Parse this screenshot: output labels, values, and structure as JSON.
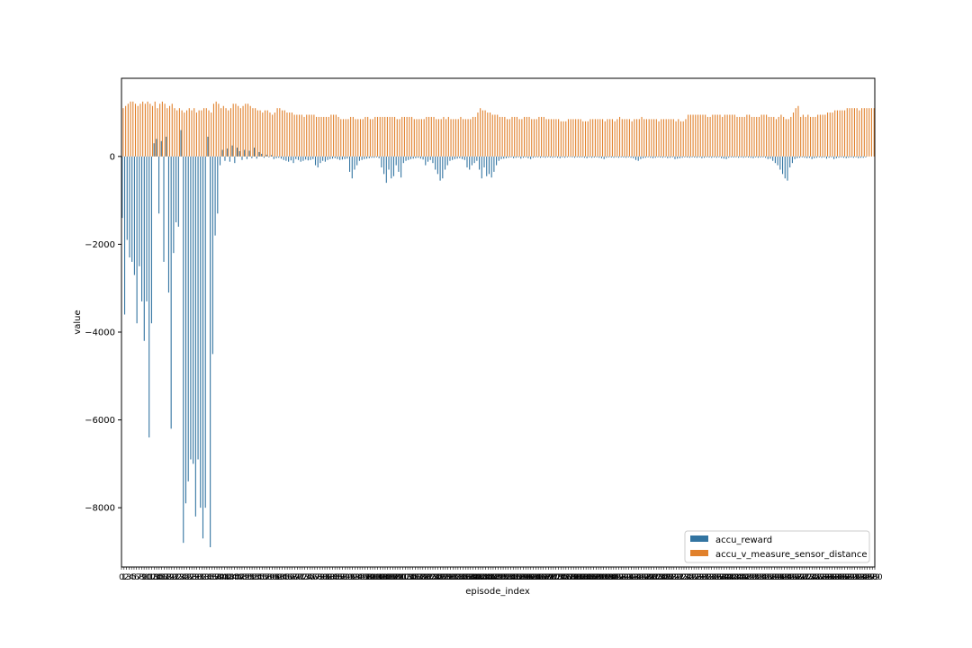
{
  "chart_data": {
    "type": "bar",
    "xlabel": "episode_index",
    "ylabel": "value",
    "ylim": [
      -9350,
      1780
    ],
    "y_ticks": [
      0,
      -2000,
      -4000,
      -6000,
      -8000
    ],
    "y_tick_labels": [
      "0",
      "−2000",
      "−4000",
      "−6000",
      "−8000"
    ],
    "x_range": [
      0,
      300
    ],
    "x_tick_labels_note": "0 … 300 (one tick per episode; labels overlap)",
    "first_tick_label": "0",
    "last_tick_label": "300",
    "legend_position": "lower-right",
    "series": [
      {
        "name": "accu_reward",
        "color": "#3274a1",
        "values": [
          -1400,
          -3600,
          -1900,
          -2300,
          -2400,
          -2700,
          -3800,
          -2500,
          -3300,
          -4200,
          -3300,
          -6400,
          -3800,
          300,
          400,
          -1300,
          350,
          -2400,
          450,
          -3100,
          -6200,
          -2200,
          -1500,
          -1600,
          600,
          -8800,
          -7900,
          -7400,
          -6900,
          -7000,
          -8200,
          -6900,
          -8000,
          -8700,
          -8000,
          450,
          -8900,
          -4500,
          -1800,
          -1300,
          -200,
          150,
          -100,
          180,
          -120,
          250,
          -150,
          200,
          120,
          -80,
          150,
          -60,
          130,
          -40,
          200,
          -50,
          100,
          60,
          -30,
          40,
          -20,
          30,
          -60,
          -40,
          -30,
          -50,
          -80,
          -100,
          -120,
          -90,
          -150,
          -60,
          -80,
          -120,
          -100,
          -70,
          -90,
          -80,
          -60,
          -200,
          -250,
          -150,
          -100,
          -120,
          -80,
          -60,
          -50,
          -40,
          -60,
          -80,
          -70,
          -60,
          -50,
          -350,
          -500,
          -300,
          -200,
          -100,
          -80,
          -60,
          -50,
          -40,
          -30,
          -30,
          -20,
          -40,
          -250,
          -400,
          -600,
          -300,
          -500,
          -450,
          -200,
          -350,
          -480,
          -150,
          -100,
          -80,
          -60,
          -50,
          -40,
          -30,
          -50,
          -70,
          -200,
          -120,
          -80,
          -150,
          -300,
          -400,
          -550,
          -500,
          -300,
          -200,
          -100,
          -80,
          -60,
          -50,
          -40,
          -60,
          -80,
          -250,
          -300,
          -200,
          -150,
          -100,
          -300,
          -500,
          -250,
          -450,
          -400,
          -480,
          -350,
          -200,
          -100,
          -60,
          -50,
          -40,
          -30,
          -20,
          -40,
          -30,
          -20,
          -50,
          -30,
          -20,
          -40,
          -60,
          -30,
          -20,
          -20,
          -30,
          -20,
          -30,
          -20,
          -25,
          -30,
          -20,
          -30,
          -40,
          -20,
          -30,
          -20,
          -15,
          -20,
          -30,
          -20,
          -25,
          -20,
          -30,
          -40,
          -20,
          -30,
          -25,
          -20,
          -30,
          -40,
          -60,
          -30,
          -20,
          -25,
          -30,
          -20,
          -30,
          -20,
          -25,
          -30,
          -20,
          -30,
          -40,
          -80,
          -100,
          -60,
          -40,
          -30,
          -20,
          -30,
          -40,
          -30,
          -20,
          -25,
          -30,
          -20,
          -40,
          -30,
          -20,
          -60,
          -50,
          -40,
          -30,
          -20,
          -25,
          -30,
          -20,
          -25,
          -30,
          -20,
          -40,
          -30,
          -20,
          -25,
          -30,
          -20,
          -30,
          -20,
          -40,
          -50,
          -60,
          -30,
          -20,
          -25,
          -20,
          -30,
          -20,
          -30,
          -20,
          -25,
          -30,
          -40,
          -20,
          -30,
          -25,
          -20,
          -30,
          -60,
          -50,
          -100,
          -150,
          -200,
          -300,
          -400,
          -500,
          -550,
          -250,
          -150,
          -60,
          -40,
          -30,
          -20,
          -30,
          -40,
          -30,
          -60,
          -40,
          -30,
          -20,
          -30,
          -20,
          -50,
          -30,
          -20,
          -60,
          -40,
          -30,
          -20,
          -30,
          -40,
          -30,
          -20,
          -30,
          -20,
          -40,
          -30,
          -30,
          -20
        ]
      },
      {
        "name": "accu_v_measure_sensor_distance",
        "color": "#e1812c",
        "values": [
          1100,
          1150,
          1200,
          1250,
          1250,
          1200,
          1150,
          1200,
          1250,
          1200,
          1250,
          1200,
          1150,
          1250,
          1100,
          1200,
          1250,
          1200,
          1100,
          1150,
          1200,
          1100,
          1050,
          1100,
          1050,
          1000,
          1050,
          1100,
          1050,
          1100,
          1000,
          1050,
          1050,
          1100,
          1100,
          1050,
          1000,
          1200,
          1250,
          1200,
          1100,
          1150,
          1100,
          1050,
          1100,
          1200,
          1200,
          1150,
          1100,
          1150,
          1200,
          1200,
          1150,
          1100,
          1100,
          1050,
          1050,
          1000,
          1050,
          1050,
          1000,
          950,
          1000,
          1100,
          1100,
          1050,
          1050,
          1000,
          1000,
          1000,
          950,
          950,
          950,
          950,
          900,
          950,
          950,
          950,
          950,
          900,
          900,
          900,
          900,
          900,
          900,
          950,
          950,
          950,
          900,
          850,
          850,
          850,
          850,
          900,
          900,
          850,
          850,
          850,
          850,
          900,
          900,
          850,
          850,
          900,
          900,
          900,
          900,
          900,
          900,
          900,
          900,
          900,
          850,
          850,
          900,
          900,
          900,
          900,
          900,
          850,
          850,
          850,
          850,
          850,
          900,
          900,
          900,
          900,
          850,
          850,
          850,
          900,
          850,
          900,
          850,
          850,
          850,
          850,
          900,
          850,
          850,
          850,
          850,
          900,
          900,
          1000,
          1100,
          1050,
          1050,
          1000,
          1000,
          950,
          950,
          950,
          900,
          900,
          900,
          850,
          850,
          900,
          900,
          900,
          850,
          850,
          900,
          900,
          900,
          850,
          850,
          850,
          900,
          900,
          900,
          850,
          850,
          850,
          850,
          850,
          850,
          800,
          800,
          800,
          850,
          850,
          850,
          850,
          850,
          850,
          800,
          800,
          800,
          850,
          850,
          850,
          850,
          850,
          850,
          800,
          850,
          850,
          850,
          800,
          850,
          900,
          850,
          850,
          850,
          850,
          800,
          850,
          850,
          850,
          900,
          850,
          850,
          850,
          850,
          850,
          850,
          800,
          850,
          850,
          850,
          850,
          850,
          850,
          800,
          850,
          800,
          800,
          850,
          950,
          950,
          950,
          950,
          950,
          950,
          950,
          950,
          900,
          900,
          950,
          950,
          950,
          950,
          900,
          950,
          950,
          950,
          950,
          950,
          900,
          900,
          900,
          900,
          950,
          950,
          900,
          900,
          900,
          900,
          950,
          950,
          950,
          900,
          900,
          900,
          850,
          900,
          950,
          900,
          850,
          850,
          900,
          1000,
          1100,
          1150,
          900,
          950,
          900,
          950,
          900,
          900,
          900,
          950,
          950,
          950,
          950,
          1000,
          1000,
          1000,
          1050,
          1050,
          1050,
          1050,
          1050,
          1100,
          1100,
          1100,
          1100,
          1100,
          1050,
          1100,
          1100,
          1100,
          1100,
          1100,
          1100
        ]
      }
    ]
  }
}
